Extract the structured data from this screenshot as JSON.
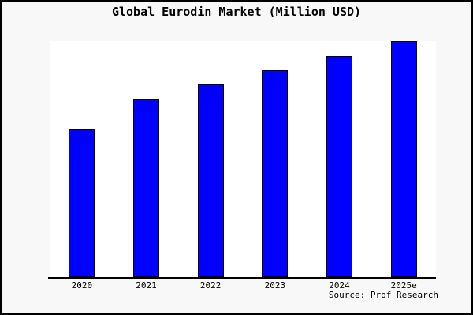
{
  "chart_data": {
    "type": "bar",
    "title": "Global Eurodin Market (Million USD)",
    "categories": [
      "2020",
      "2021",
      "2022",
      "2023",
      "2024",
      "2025e"
    ],
    "values": [
      62.7,
      75.2,
      81.7,
      87.7,
      93.7,
      100
    ],
    "value_note": "No y-axis labels shown in chart; values are relative heights estimated from pixels with tallest bar (2025e) = 100",
    "xlabel": "",
    "ylabel": "",
    "ylim": [
      0,
      100
    ],
    "grid": false,
    "legend": "none",
    "source": "Source: Prof Research",
    "colors": {
      "bar_fill": "#0000ff",
      "bar_border": "#000000",
      "plot_background": "#ffffff",
      "frame_background": "#f8f8f8",
      "frame_border": "#000000",
      "text": "#000000"
    }
  }
}
